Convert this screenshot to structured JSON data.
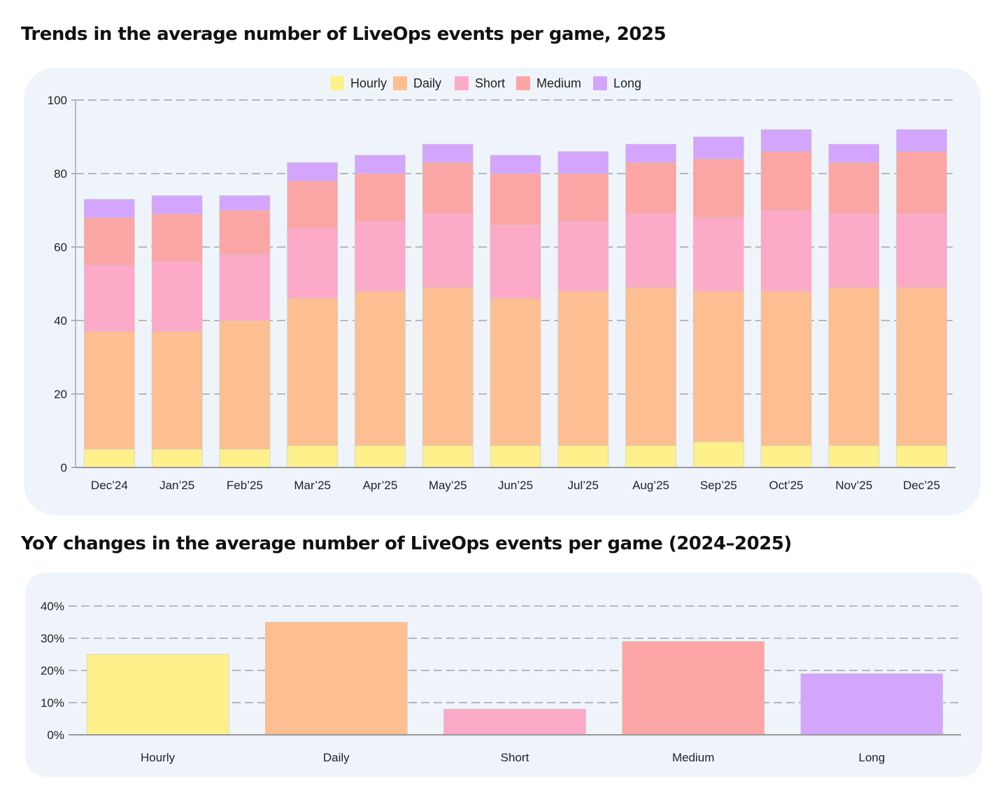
{
  "chart_data": [
    {
      "type": "bar",
      "stacked": true,
      "title": "Trends in the average number of LiveOps events per game, 2025",
      "categories": [
        "Dec’24",
        "Jan’25",
        "Feb’25",
        "Mar’25",
        "Apr’25",
        "May’25",
        "Jun’25",
        "Jul’25",
        "Aug’25",
        "Sep’25",
        "Oct’25",
        "Nov’25",
        "Dec’25"
      ],
      "series": [
        {
          "name": "Hourly",
          "color": "#fef08a",
          "values": [
            5,
            5,
            5,
            6,
            6,
            6,
            6,
            6,
            6,
            7,
            6,
            6,
            6
          ]
        },
        {
          "name": "Daily",
          "color": "#fdbf91",
          "values": [
            32,
            32,
            35,
            40,
            42,
            43,
            40,
            42,
            43,
            41,
            42,
            43,
            43
          ]
        },
        {
          "name": "Short",
          "color": "#fda9c8",
          "values": [
            18,
            19,
            18,
            19,
            19,
            20,
            20,
            19,
            20,
            20,
            22,
            20,
            20
          ]
        },
        {
          "name": "Medium",
          "color": "#fca5a5",
          "values": [
            13,
            13,
            12,
            13,
            13,
            14,
            14,
            13,
            14,
            16,
            16,
            14,
            17
          ]
        },
        {
          "name": "Long",
          "color": "#d4a5fc",
          "values": [
            5,
            5,
            4,
            5,
            5,
            5,
            5,
            6,
            5,
            6,
            6,
            5,
            6
          ]
        }
      ],
      "ylim": [
        0,
        100
      ],
      "yticks": [
        "0",
        "20",
        "40",
        "60",
        "80",
        "100"
      ],
      "grid": true,
      "legend": "top-center"
    },
    {
      "type": "bar",
      "title": "YoY changes in the average number of LiveOps events per game (2024–2025)",
      "categories": [
        "Hourly",
        "Daily",
        "Short",
        "Medium",
        "Long"
      ],
      "colors": [
        "#fef08a",
        "#fdbf91",
        "#fda9c8",
        "#fca5a5",
        "#d4a5fc"
      ],
      "values": [
        25,
        35,
        8,
        29,
        19
      ],
      "ylim": [
        0,
        40
      ],
      "yticks": [
        "0%",
        "10%",
        "20%",
        "30%",
        "40%"
      ],
      "grid": true
    }
  ]
}
